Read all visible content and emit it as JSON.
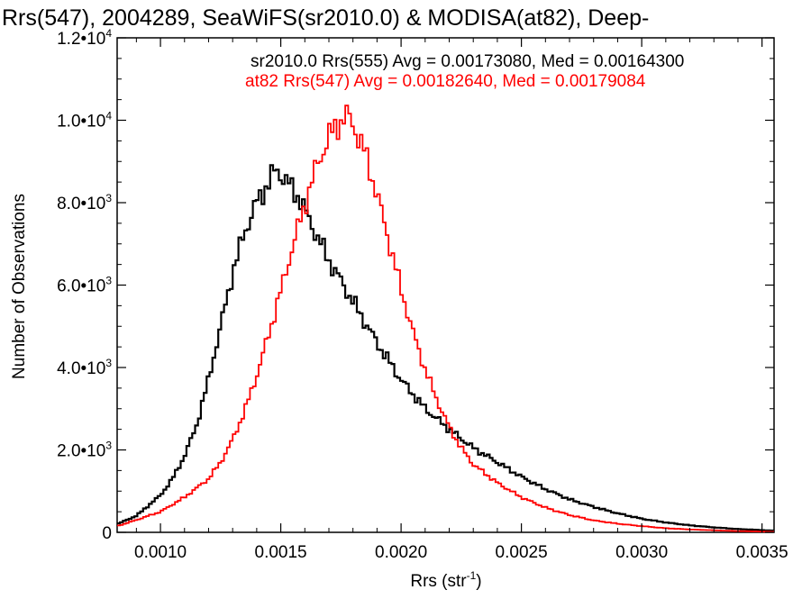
{
  "chart_data": {
    "type": "line",
    "title": "Rrs(547), 2004289, SeaWiFS(sr2010.0) & MODISA(at82), Deep-",
    "xlabel": "Rrs (str",
    "xlabel_sup": "-1",
    "xlabel_close": ")",
    "ylabel": "Number of Observations",
    "xlim": [
      0.00082,
      0.00355
    ],
    "ylim": [
      0,
      12000
    ],
    "x_ticks": [
      {
        "value": 0.001,
        "label": "0.0010"
      },
      {
        "value": 0.0015,
        "label": "0.0015"
      },
      {
        "value": 0.002,
        "label": "0.0020"
      },
      {
        "value": 0.0025,
        "label": "0.0025"
      },
      {
        "value": 0.003,
        "label": "0.0030"
      },
      {
        "value": 0.0035,
        "label": "0.0035"
      }
    ],
    "y_ticks": [
      {
        "value": 0,
        "label": "0"
      },
      {
        "value": 2000,
        "mantissa": "2.0",
        "exponent": "3"
      },
      {
        "value": 4000,
        "mantissa": "4.0",
        "exponent": "3"
      },
      {
        "value": 6000,
        "mantissa": "6.0",
        "exponent": "3"
      },
      {
        "value": 8000,
        "mantissa": "8.0",
        "exponent": "3"
      },
      {
        "value": 10000,
        "mantissa": "1.0",
        "exponent": "4"
      },
      {
        "value": 12000,
        "mantissa": "1.2",
        "exponent": "4"
      }
    ],
    "grid": false,
    "legend_placement": "top-right",
    "series": [
      {
        "label": "sr2010.0 Rrs(555) Avg = 0.00173080, Med = 0.00164300",
        "color": "#000000",
        "x": [
          0.00082,
          0.0009,
          0.001,
          0.00105,
          0.0011,
          0.00115,
          0.0012,
          0.00125,
          0.0013,
          0.00135,
          0.0014,
          0.00145,
          0.00148,
          0.0015,
          0.00152,
          0.00155,
          0.00158,
          0.0016,
          0.00165,
          0.0017,
          0.00175,
          0.0018,
          0.00185,
          0.0019,
          0.00195,
          0.002,
          0.0021,
          0.0022,
          0.0023,
          0.0024,
          0.0025,
          0.0026,
          0.0027,
          0.0028,
          0.0029,
          0.003,
          0.0031,
          0.0032,
          0.0033,
          0.0034,
          0.00355
        ],
        "y": [
          200,
          400,
          900,
          1300,
          1850,
          2600,
          3700,
          5000,
          6300,
          7300,
          8000,
          8500,
          8800,
          8700,
          8550,
          8300,
          8100,
          7800,
          7200,
          6600,
          6100,
          5600,
          5100,
          4600,
          4150,
          3700,
          3000,
          2500,
          2050,
          1700,
          1350,
          1050,
          800,
          620,
          460,
          330,
          240,
          170,
          120,
          80,
          40
        ]
      },
      {
        "label": "at82 Rrs(547) Avg = 0.00182640, Med = 0.00179084",
        "color": "#ff0000",
        "x": [
          0.00082,
          0.0009,
          0.001,
          0.0011,
          0.0012,
          0.00125,
          0.0013,
          0.00135,
          0.0014,
          0.00145,
          0.0015,
          0.00155,
          0.0016,
          0.00165,
          0.0017,
          0.00175,
          0.00178,
          0.0018,
          0.00185,
          0.0019,
          0.00195,
          0.002,
          0.00205,
          0.0021,
          0.00215,
          0.0022,
          0.00225,
          0.0023,
          0.0024,
          0.0025,
          0.0026,
          0.0027,
          0.0028,
          0.0029,
          0.003,
          0.0031,
          0.0032,
          0.0033,
          0.0034,
          0.00355
        ],
        "y": [
          150,
          300,
          500,
          850,
          1300,
          1700,
          2250,
          2950,
          3800,
          4800,
          5850,
          6950,
          7950,
          8900,
          9600,
          10000,
          10100,
          9900,
          9200,
          8200,
          7050,
          5900,
          4850,
          3950,
          3200,
          2550,
          2050,
          1650,
          1200,
          850,
          600,
          420,
          290,
          210,
          150,
          100,
          70,
          50,
          30,
          15
        ]
      }
    ]
  }
}
